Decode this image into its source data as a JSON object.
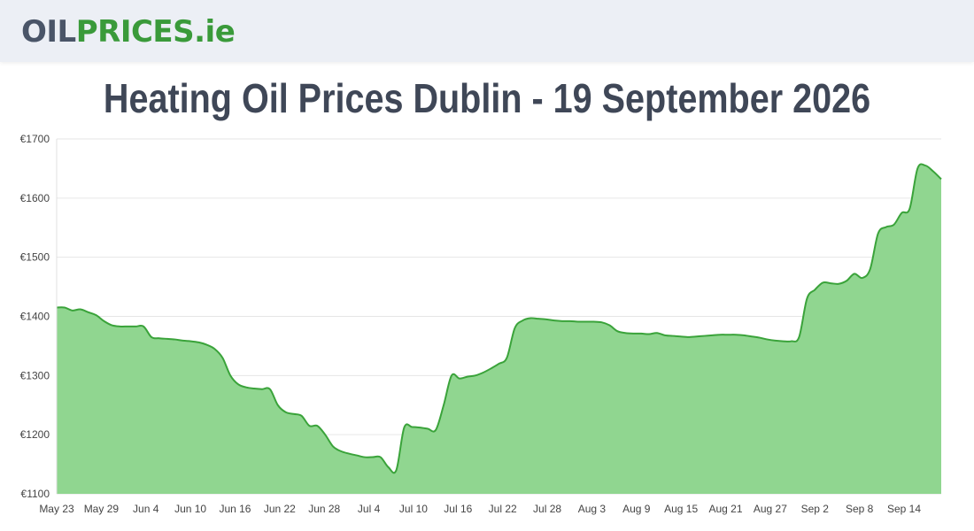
{
  "header": {
    "logo_part1": "OIL",
    "logo_part2": "PRICES",
    "logo_part3": ".ie"
  },
  "page_title": "Heating Oil Prices Dublin - 19 September 2026",
  "colors": {
    "line": "#3aa33a",
    "fill": "#90d690",
    "grid": "#e6e6e6"
  },
  "chart_data": {
    "type": "area",
    "title": "Heating Oil Prices Dublin - 19 September 2026",
    "xlabel": "",
    "ylabel": "",
    "ylim": [
      1100,
      1700
    ],
    "y_ticks": [
      1100,
      1200,
      1300,
      1400,
      1500,
      1600,
      1700
    ],
    "y_tick_prefix": "€",
    "x_ticks": [
      "May 23",
      "May 29",
      "Jun 4",
      "Jun 10",
      "Jun 16",
      "Jun 22",
      "Jun 28",
      "Jul 4",
      "Jul 10",
      "Jul 16",
      "Jul 22",
      "Jul 28",
      "Aug 3",
      "Aug 9",
      "Aug 15",
      "Aug 21",
      "Aug 27",
      "Sep 2",
      "Sep 8",
      "Sep 14"
    ],
    "grid": true,
    "legend": "none",
    "series": [
      {
        "values": [
          1415,
          1415,
          1410,
          1412,
          1407,
          1402,
          1392,
          1385,
          1383,
          1383,
          1383,
          1383,
          1365,
          1363,
          1362,
          1361,
          1359,
          1358,
          1356,
          1352,
          1345,
          1330,
          1300,
          1285,
          1280,
          1278,
          1277,
          1277,
          1250,
          1238,
          1235,
          1232,
          1215,
          1215,
          1200,
          1180,
          1172,
          1168,
          1165,
          1162,
          1162,
          1162,
          1145,
          1140,
          1212,
          1213,
          1212,
          1210,
          1208,
          1250,
          1300,
          1295,
          1298,
          1300,
          1305,
          1312,
          1320,
          1330,
          1380,
          1393,
          1397,
          1396,
          1395,
          1393,
          1392,
          1392,
          1391,
          1391,
          1391,
          1390,
          1385,
          1375,
          1372,
          1371,
          1371,
          1370,
          1372,
          1368,
          1367,
          1366,
          1365,
          1366,
          1367,
          1368,
          1369,
          1369,
          1369,
          1368,
          1366,
          1364,
          1361,
          1359,
          1358,
          1358,
          1365,
          1430,
          1445,
          1457,
          1456,
          1455,
          1460,
          1472,
          1465,
          1480,
          1540,
          1551,
          1555,
          1575,
          1582,
          1650,
          1655,
          1645,
          1632
        ]
      }
    ]
  }
}
